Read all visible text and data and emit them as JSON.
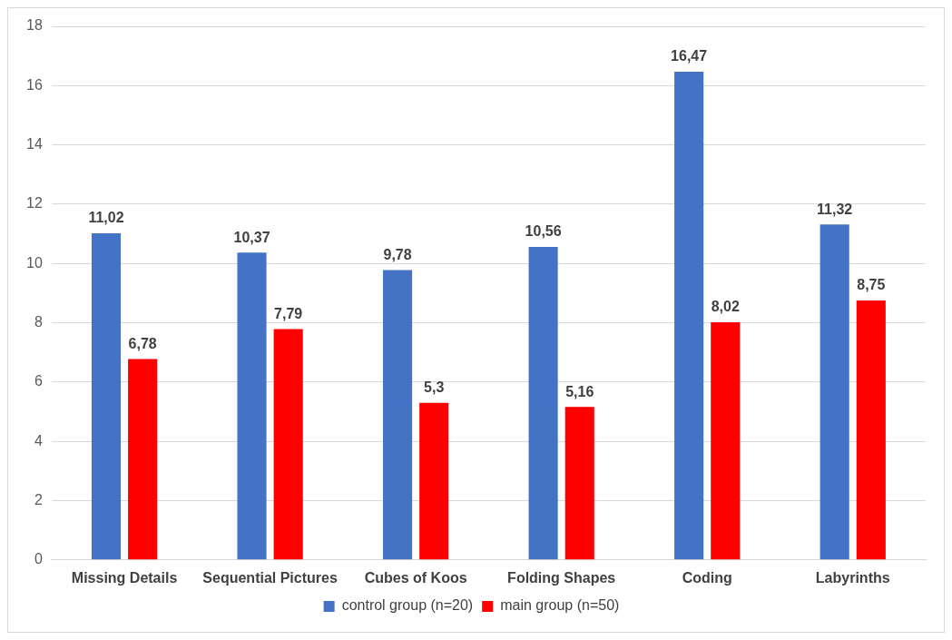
{
  "chart_data": {
    "type": "bar",
    "categories": [
      "Missing Details",
      "Sequential Pictures",
      "Cubes of Koos",
      "Folding Shapes",
      "Coding",
      "Labyrinths"
    ],
    "series": [
      {
        "name": "control group (n=20)",
        "color": "#4472c4",
        "values": [
          11.02,
          10.37,
          9.78,
          10.56,
          16.47,
          11.32
        ],
        "value_labels": [
          "11,02",
          "10,37",
          "9,78",
          "10,56",
          "16,47",
          "11,32"
        ]
      },
      {
        "name": "main group (n=50)",
        "color": "#ff0000",
        "values": [
          6.78,
          7.79,
          5.3,
          5.16,
          8.02,
          8.75
        ],
        "value_labels": [
          "6,78",
          "7,79",
          "5,3",
          "5,16",
          "8,02",
          "8,75"
        ]
      }
    ],
    "ylim": [
      0,
      18
    ],
    "yticks": [
      0,
      2,
      4,
      6,
      8,
      10,
      12,
      14,
      16,
      18
    ],
    "grid": "y",
    "legend": "bottom"
  }
}
